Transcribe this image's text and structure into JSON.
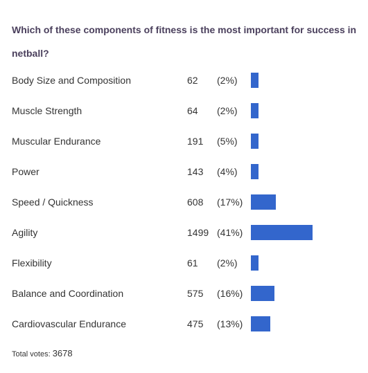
{
  "question": "Which of these components of fitness is the most important for success in netball?",
  "chart_data": {
    "type": "bar",
    "orientation": "horizontal",
    "title": "Which of these components of fitness is the most important for success in netball?",
    "categories": [
      "Body Size and Composition",
      "Muscle Strength",
      "Muscular Endurance",
      "Power",
      "Speed / Quickness",
      "Agility",
      "Flexibility",
      "Balance and Coordination",
      "Cardiovascular Endurance"
    ],
    "values": [
      62,
      64,
      191,
      143,
      608,
      1499,
      61,
      575,
      475
    ],
    "percent_labels": [
      "(2%)",
      "(2%)",
      "(5%)",
      "(4%)",
      "(17%)",
      "(41%)",
      "(2%)",
      "(16%)",
      "(13%)"
    ],
    "bar_color": "#3366cc"
  },
  "total": {
    "label": "Total votes:",
    "value": "3678"
  }
}
